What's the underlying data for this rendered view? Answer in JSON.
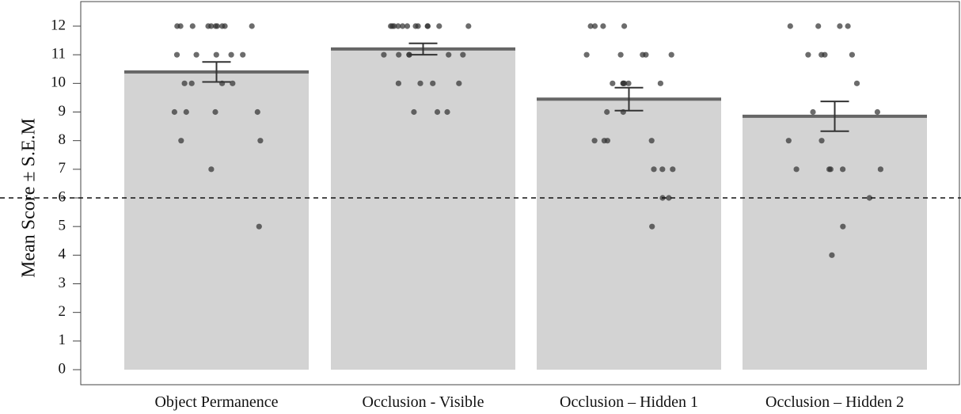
{
  "chart_data": {
    "type": "bar",
    "title": "",
    "xlabel": "",
    "ylabel": "Mean Score ± S.E.M",
    "ylim": [
      0,
      12.5
    ],
    "yticks": [
      "0",
      "1",
      "2",
      "3",
      "4",
      "5",
      "6",
      "7",
      "8",
      "9",
      "10",
      "11",
      "12"
    ],
    "categories": [
      "Object Permanence",
      "Occlusion - Visible",
      "Occlusion – Hidden 1",
      "Occlusion – Hidden 2"
    ],
    "values": [
      10.4,
      11.2,
      9.45,
      8.85
    ],
    "sem": [
      0.35,
      0.2,
      0.4,
      0.52
    ],
    "reference_line": 6,
    "points": [
      [
        12,
        12,
        12,
        12,
        12,
        12,
        12,
        12,
        12,
        12,
        11,
        11,
        11,
        11,
        11,
        10,
        10,
        10,
        10,
        9,
        9,
        9,
        9,
        8,
        8,
        7,
        5
      ],
      [
        12,
        12,
        12,
        12,
        12,
        12,
        12,
        12,
        12,
        12,
        12,
        12,
        11,
        11,
        11,
        11,
        11,
        11,
        10,
        10,
        10,
        10,
        9,
        9,
        9
      ],
      [
        12,
        12,
        12,
        12,
        11,
        11,
        11,
        11,
        11,
        10,
        10,
        10,
        10,
        10,
        10,
        9,
        9,
        8,
        8,
        8,
        8,
        7,
        7,
        7,
        6,
        6,
        5
      ],
      [
        12,
        12,
        12,
        12,
        11,
        11,
        11,
        11,
        10,
        9,
        9,
        8,
        8,
        7,
        7,
        7,
        7,
        7,
        6,
        5,
        4
      ]
    ],
    "colors": {
      "bar": "#d3d3d3",
      "mean_line": "#666666",
      "points": "#333333",
      "error_bar": "#333333"
    }
  }
}
